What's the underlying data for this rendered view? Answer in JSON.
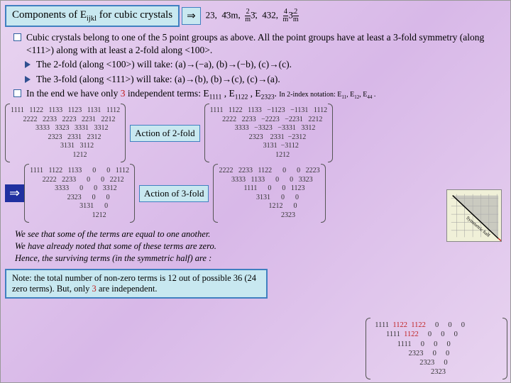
{
  "title": "Components of E",
  "title_sub": "ijkl",
  "title_rest": " for cubic crystals",
  "point_groups_text": "23,  4̄3m,  (2/m)3̄,  432,  (4/m)3̄(2/m)",
  "b1": "Cubic crystals belong to one of the 5 point groups as above. All the point groups have at least a 3-fold symmetry (along <111>) along with at least a 2-fold along <100>.",
  "b2a": "The 2-fold (along <100>) will take: (a)→(−a), (b)→(−b), (c)→(c).",
  "b2b": "The 3-fold (along <111>) will take: (a)→(b), (b)→(c), (c)→(a).",
  "b3a": "In the end we have only ",
  "b3b": " independent terms: E",
  "b3c": " . ",
  "two_index": "In 2-index notation: E",
  "action2": "Action of 2-fold",
  "action3": "Action of 3-fold",
  "note_text": "We see that some of the terms are equal to one another.\nWe have already noted that some of these terms are zero.\nHence, the surviving terms (in the symmetric half) are :",
  "bottom_note": "Note: the total number of non-zero terms is 12 out of possible 36 (24 zero terms). But, only 3 are independent.",
  "m1": [
    "1111   1122   1133   1123   1131   1112",
    "       2222   2233   2223   2231   2212",
    "              3333   3323   3331   3312",
    "                     2323   2331   2312",
    "                            3131   3112",
    "                                   1212"
  ],
  "m2": [
    "1111   1122   1133   −1123   −1131   1112",
    "       2222   2233   −2223   −2231   2212",
    "              3333   −3323   −3331   3312",
    "                      2323    2331  −2312",
    "                              3131  −3112",
    "                                     1212"
  ],
  "m3": [
    "1111   1122   1133      0      0   1112",
    "       2222   2233      0      0   2212",
    "              3333      0      0   3312",
    "                     2323      0      0",
    "                            3131      0",
    "                                   1212"
  ],
  "m4": [
    "2222   2233   1122      0      0   2223",
    "       3333   1133      0      0   3323",
    "              1111      0      0   1123",
    "                     3131      0      0",
    "                            1212      0",
    "                                   2323"
  ],
  "mf": [
    [
      "1111",
      "1122",
      "1122",
      "0",
      "0",
      "0"
    ],
    [
      "",
      "1111",
      "1122",
      "0",
      "0",
      "0"
    ],
    [
      "",
      "",
      "1111",
      "0",
      "0",
      "0"
    ],
    [
      "",
      "",
      "",
      "2323",
      "0",
      "0"
    ],
    [
      "",
      "",
      "",
      "",
      "2323",
      "0"
    ],
    [
      "",
      "",
      "",
      "",
      "",
      "2323"
    ]
  ],
  "red_positions": [
    [
      0,
      1
    ],
    [
      0,
      2
    ],
    [
      1,
      2
    ]
  ],
  "colors": {
    "bg_grad_a": "#e8d4f0",
    "bg_grad_b": "#d8b8e8",
    "box_bg": "#c8e8f0",
    "box_border": "#4080c0",
    "red": "#c02020",
    "blue_arrow": "#2030a0"
  }
}
